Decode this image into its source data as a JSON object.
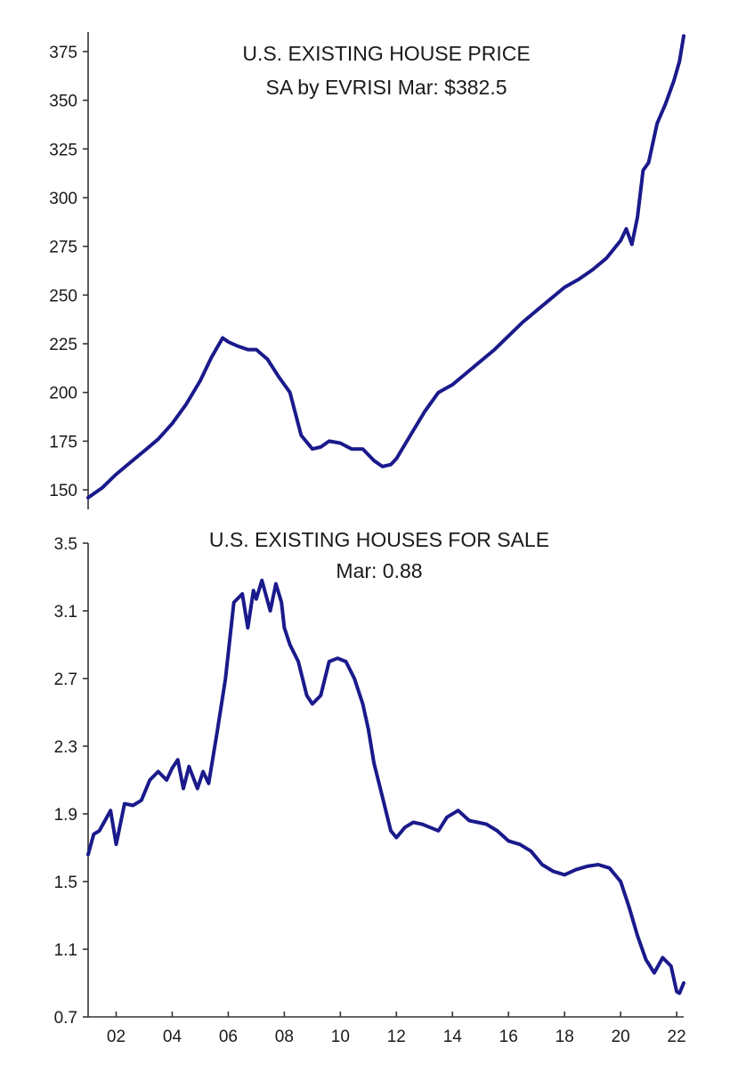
{
  "chart_data": [
    {
      "type": "line",
      "title": "U.S. EXISTING HOUSE PRICE",
      "subtitle": "SA by EVRISI  Mar: $382.5",
      "ylim": [
        140,
        385
      ],
      "yticks": [
        150,
        175,
        200,
        225,
        250,
        275,
        300,
        325,
        350,
        375
      ],
      "xlim": [
        2001.0,
        2022.25
      ],
      "color": "#1a1a8c",
      "series": [
        {
          "name": "Existing house price",
          "x": [
            2001.0,
            2001.5,
            2002.0,
            2002.5,
            2003.0,
            2003.5,
            2004.0,
            2004.5,
            2005.0,
            2005.4,
            2005.8,
            2006.0,
            2006.3,
            2006.7,
            2007.0,
            2007.4,
            2007.8,
            2008.2,
            2008.6,
            2009.0,
            2009.3,
            2009.6,
            2010.0,
            2010.4,
            2010.8,
            2011.2,
            2011.5,
            2011.8,
            2012.0,
            2012.5,
            2013.0,
            2013.5,
            2014.0,
            2014.5,
            2015.0,
            2015.5,
            2016.0,
            2016.5,
            2017.0,
            2017.5,
            2018.0,
            2018.5,
            2019.0,
            2019.5,
            2020.0,
            2020.2,
            2020.4,
            2020.6,
            2020.8,
            2021.0,
            2021.3,
            2021.6,
            2021.9,
            2022.1,
            2022.25
          ],
          "values": [
            146,
            151,
            158,
            164,
            170,
            176,
            184,
            194,
            206,
            218,
            228,
            226,
            224,
            222,
            222,
            217,
            208,
            200,
            178,
            171,
            172,
            175,
            174,
            171,
            171,
            165,
            162,
            163,
            166,
            178,
            190,
            200,
            204,
            210,
            216,
            222,
            229,
            236,
            242,
            248,
            254,
            258,
            263,
            269,
            278,
            284,
            276,
            290,
            314,
            318,
            338,
            348,
            360,
            370,
            383
          ]
        }
      ]
    },
    {
      "type": "line",
      "title": "U.S. EXISTING HOUSES FOR SALE",
      "subtitle": "Mar: 0.88",
      "ylim": [
        0.7,
        3.5
      ],
      "yticks": [
        0.7,
        1.1,
        1.5,
        1.9,
        2.3,
        2.7,
        3.1,
        3.5
      ],
      "xlim": [
        2001.0,
        2022.25
      ],
      "categories": [
        "02",
        "04",
        "06",
        "08",
        "10",
        "12",
        "14",
        "16",
        "18",
        "20",
        "22"
      ],
      "tick_years": [
        2002,
        2004,
        2006,
        2008,
        2010,
        2012,
        2014,
        2016,
        2018,
        2020,
        2022
      ],
      "color": "#1a1a8c",
      "series": [
        {
          "name": "Existing houses for sale",
          "x": [
            2001.0,
            2001.2,
            2001.4,
            2001.6,
            2001.8,
            2002.0,
            2002.3,
            2002.6,
            2002.9,
            2003.2,
            2003.5,
            2003.8,
            2004.0,
            2004.2,
            2004.4,
            2004.6,
            2004.9,
            2005.1,
            2005.3,
            2005.6,
            2005.9,
            2006.2,
            2006.5,
            2006.7,
            2006.9,
            2007.0,
            2007.2,
            2007.5,
            2007.7,
            2007.9,
            2008.0,
            2008.2,
            2008.5,
            2008.8,
            2009.0,
            2009.3,
            2009.6,
            2009.9,
            2010.2,
            2010.5,
            2010.8,
            2011.0,
            2011.2,
            2011.5,
            2011.8,
            2012.0,
            2012.3,
            2012.6,
            2012.9,
            2013.2,
            2013.5,
            2013.8,
            2014.2,
            2014.6,
            2014.9,
            2015.2,
            2015.6,
            2016.0,
            2016.4,
            2016.8,
            2017.2,
            2017.6,
            2018.0,
            2018.4,
            2018.8,
            2019.2,
            2019.6,
            2020.0,
            2020.3,
            2020.6,
            2020.9,
            2021.2,
            2021.5,
            2021.8,
            2022.0,
            2022.1,
            2022.25
          ],
          "values": [
            1.66,
            1.78,
            1.8,
            1.86,
            1.92,
            1.72,
            1.96,
            1.95,
            1.98,
            2.1,
            2.15,
            2.1,
            2.17,
            2.22,
            2.05,
            2.18,
            2.05,
            2.15,
            2.08,
            2.38,
            2.7,
            3.15,
            3.2,
            3.0,
            3.22,
            3.17,
            3.28,
            3.1,
            3.26,
            3.15,
            3.0,
            2.9,
            2.8,
            2.6,
            2.55,
            2.6,
            2.8,
            2.82,
            2.8,
            2.7,
            2.55,
            2.4,
            2.2,
            2.0,
            1.8,
            1.76,
            1.82,
            1.85,
            1.84,
            1.82,
            1.8,
            1.88,
            1.92,
            1.86,
            1.85,
            1.84,
            1.8,
            1.74,
            1.72,
            1.68,
            1.6,
            1.56,
            1.54,
            1.57,
            1.59,
            1.6,
            1.58,
            1.5,
            1.35,
            1.18,
            1.04,
            0.96,
            1.05,
            1.0,
            0.85,
            0.84,
            0.9
          ]
        }
      ]
    }
  ]
}
